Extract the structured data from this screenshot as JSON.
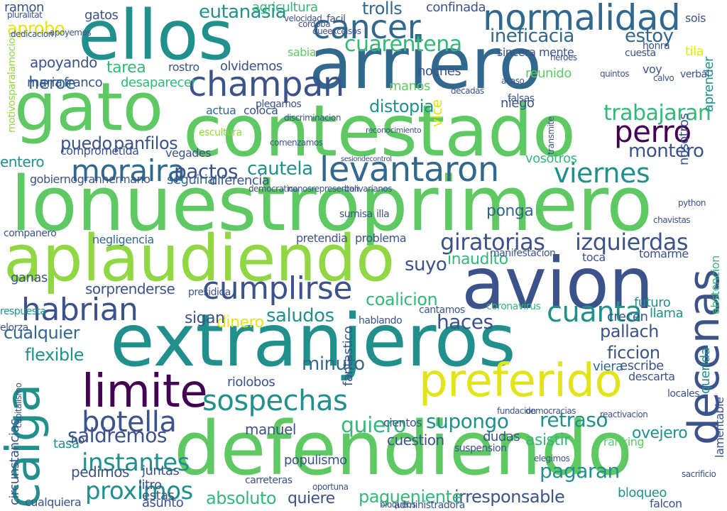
{
  "palette": {
    "dark_purple": "#440154",
    "indigo": "#3b528b",
    "slate_blue": "#31688e",
    "teal": "#21908d",
    "sea_green": "#35b779",
    "green": "#5ec962",
    "lime": "#90d743",
    "yellow": "#e3e418"
  },
  "words": [
    {
      "text": "ellos",
      "color": "#21908d"
    },
    {
      "text": "arriero",
      "color": "#31688e"
    },
    {
      "text": "gato",
      "color": "#5ec962"
    },
    {
      "text": "contestado",
      "color": "#5ec962"
    },
    {
      "text": "lonuestroprimero",
      "color": "#5ec962"
    },
    {
      "text": "aplaudiendo",
      "color": "#90d743"
    },
    {
      "text": "avion",
      "color": "#3b528b"
    },
    {
      "text": "extranjeros",
      "color": "#21908d"
    },
    {
      "text": "defendiendo",
      "color": "#5ec962"
    },
    {
      "text": "limite",
      "color": "#440154"
    },
    {
      "text": "preferido",
      "color": "#e3e418"
    },
    {
      "text": "caiga",
      "color": "#21908d"
    },
    {
      "text": "decenas",
      "color": "#3b528b"
    },
    {
      "text": "normalidad",
      "color": "#31688e"
    },
    {
      "text": "cancer",
      "color": "#31688e"
    },
    {
      "text": "champan",
      "color": "#3b528b"
    },
    {
      "text": "perro",
      "color": "#440154"
    },
    {
      "text": "levantaron",
      "color": "#31688e"
    },
    {
      "text": "moraira",
      "color": "#31688e"
    },
    {
      "text": "viernes",
      "color": "#21908d"
    },
    {
      "text": "cumplirse",
      "color": "#3b528b"
    },
    {
      "text": "habrian",
      "color": "#3b528b"
    },
    {
      "text": "cuanta",
      "color": "#21908d"
    },
    {
      "text": "sospechas",
      "color": "#21908d"
    },
    {
      "text": "botella",
      "color": "#3b528b"
    },
    {
      "text": "giratorias",
      "color": "#3b528b"
    },
    {
      "text": "izquierdas",
      "color": "#3b528b"
    },
    {
      "text": "eutanasia",
      "color": "#21908d"
    },
    {
      "text": "cuarentena",
      "color": "#35b779"
    },
    {
      "text": "ineficacia",
      "color": "#31688e"
    },
    {
      "text": "estoy",
      "color": "#31688e"
    },
    {
      "text": "proximos",
      "color": "#21908d"
    },
    {
      "text": "instantes",
      "color": "#21908d"
    },
    {
      "text": "saldremos",
      "color": "#3b528b"
    },
    {
      "text": "pactos",
      "color": "#3b528b"
    },
    {
      "text": "cautela",
      "color": "#21908d"
    },
    {
      "text": "quiero",
      "color": "#35b779"
    },
    {
      "text": "supongo",
      "color": "#21908d"
    },
    {
      "text": "retraso",
      "color": "#21908d"
    },
    {
      "text": "trabajaran",
      "color": "#35b779"
    },
    {
      "text": "montero",
      "color": "#3b528b"
    },
    {
      "text": "pallach",
      "color": "#3b528b"
    },
    {
      "text": "ficcion",
      "color": "#3b528b"
    },
    {
      "text": "haces",
      "color": "#3b528b"
    },
    {
      "text": "saludos",
      "color": "#21908d"
    },
    {
      "text": "coalicion",
      "color": "#35b779"
    },
    {
      "text": "flexible",
      "color": "#21908d"
    },
    {
      "text": "cualquier",
      "color": "#31688e"
    },
    {
      "text": "pagaran",
      "color": "#21908d"
    },
    {
      "text": "irresponsable",
      "color": "#3b528b"
    },
    {
      "text": "absoluto",
      "color": "#35b779"
    },
    {
      "text": "quiere",
      "color": "#3b528b"
    },
    {
      "text": "pagueniente",
      "color": "#35b779"
    },
    {
      "text": "minuto",
      "color": "#31688e"
    },
    {
      "text": "trolls",
      "color": "#31688e"
    },
    {
      "text": "tarea",
      "color": "#35b779"
    },
    {
      "text": "heroe",
      "color": "#31688e"
    },
    {
      "text": "apoyando",
      "color": "#3b528b"
    },
    {
      "text": "aprobo",
      "color": "#e3e418"
    },
    {
      "text": "distopia",
      "color": "#21908d"
    },
    {
      "text": "puedo",
      "color": "#3b528b"
    },
    {
      "text": "maria",
      "color": "#3b528b"
    },
    {
      "text": "franco",
      "color": "#3b528b"
    },
    {
      "text": "desaparecer",
      "color": "#35b779"
    },
    {
      "text": "olvidemos",
      "color": "#3b528b"
    },
    {
      "text": "sincera mente",
      "color": "#3b528b"
    },
    {
      "text": "panfilos",
      "color": "#3b528b"
    },
    {
      "text": "gatos",
      "color": "#3b528b"
    },
    {
      "text": "ramon",
      "color": "#3b528b"
    },
    {
      "text": "agricultura",
      "color": "#35b779"
    },
    {
      "text": "confinada",
      "color": "#3b528b"
    },
    {
      "text": "dinero",
      "color": "#e3e418"
    },
    {
      "text": "sigan",
      "color": "#3b528b"
    },
    {
      "text": "manuel",
      "color": "#3b528b"
    },
    {
      "text": "cuestion",
      "color": "#3b528b"
    },
    {
      "text": "asistir",
      "color": "#35b779"
    },
    {
      "text": "ovejero",
      "color": "#21908d"
    },
    {
      "text": "seguiria",
      "color": "#31688e"
    },
    {
      "text": "diferencia",
      "color": "#3b528b"
    },
    {
      "text": "negligencia",
      "color": "#31688e"
    },
    {
      "text": "suyo",
      "color": "#3b528b"
    },
    {
      "text": "inaudito",
      "color": "#35b779"
    },
    {
      "text": "ponga",
      "color": "#31688e"
    },
    {
      "text": "sorprenderse",
      "color": "#3b528b"
    },
    {
      "text": "llama",
      "color": "#21908d"
    },
    {
      "text": "futuro",
      "color": "#21908d"
    },
    {
      "text": "escribe",
      "color": "#3b528b"
    },
    {
      "text": "viera",
      "color": "#31688e"
    },
    {
      "text": "crecen",
      "color": "#3b528b"
    },
    {
      "text": "fantastico",
      "color": "#3b528b"
    },
    {
      "text": "bloqueo",
      "color": "#21908d"
    },
    {
      "text": "falcon",
      "color": "#3b528b"
    },
    {
      "text": "ganas",
      "color": "#3b528b"
    },
    {
      "text": "circunstancias",
      "color": "#3b528b"
    },
    {
      "text": "cualquiera",
      "color": "#3b528b"
    },
    {
      "text": "juntas",
      "color": "#3b528b"
    },
    {
      "text": "litro",
      "color": "#3b528b"
    },
    {
      "text": "pedimos",
      "color": "#3b528b"
    },
    {
      "text": "riolobos",
      "color": "#3b528b"
    },
    {
      "text": "populismo",
      "color": "#3b528b"
    },
    {
      "text": "dudas",
      "color": "#3b528b"
    },
    {
      "text": "asunto",
      "color": "#3b528b"
    },
    {
      "text": "estas",
      "color": "#3b528b"
    },
    {
      "text": "tasa",
      "color": "#21908d"
    },
    {
      "text": "ho",
      "color": "#3b528b"
    },
    {
      "text": "descarta",
      "color": "#3b528b"
    },
    {
      "text": "entero",
      "color": "#21908d"
    },
    {
      "text": "vegades",
      "color": "#3b528b"
    },
    {
      "text": "comprometida",
      "color": "#3b528b"
    },
    {
      "text": "nosotros",
      "color": "#3b528b"
    },
    {
      "text": "vosotros",
      "color": "#35b779"
    },
    {
      "text": "niego",
      "color": "#3b528b"
    },
    {
      "text": "reunido",
      "color": "#5ec962"
    },
    {
      "text": "noches",
      "color": "#3b528b"
    },
    {
      "text": "coloca",
      "color": "#3b528b"
    },
    {
      "text": "actua",
      "color": "#31688e"
    },
    {
      "text": "aprender",
      "color": "#21908d"
    },
    {
      "text": "voy",
      "color": "#3b528b"
    },
    {
      "text": "sois",
      "color": "#3b528b"
    },
    {
      "text": "tila",
      "color": "#e3e418"
    },
    {
      "text": "sabia",
      "color": "#5ec962"
    },
    {
      "text": "manos",
      "color": "#5ec962"
    },
    {
      "text": "toca",
      "color": "#3b528b"
    },
    {
      "text": "tomarme",
      "color": "#3b528b"
    },
    {
      "text": "hablando",
      "color": "#3b528b"
    },
    {
      "text": "cantamos",
      "color": "#3b528b"
    },
    {
      "text": "presidida",
      "color": "#3b528b"
    },
    {
      "text": "rostro",
      "color": "#3b528b"
    },
    {
      "text": "escultura",
      "color": "#90d743"
    },
    {
      "text": "gobiernogranhermano",
      "color": "#3b528b"
    },
    {
      "text": "companero",
      "color": "#3b528b"
    },
    {
      "text": "motivosparalamocion",
      "color": "#90d743"
    },
    {
      "text": "python",
      "color": "#3b528b"
    },
    {
      "text": "chavistas",
      "color": "#3b528b"
    },
    {
      "text": "respuesta",
      "color": "#21908d"
    },
    {
      "text": "verbal",
      "color": "#3b528b"
    },
    {
      "text": "abstencion",
      "color": "#35b779"
    },
    {
      "text": "manifestacion",
      "color": "#3b528b"
    },
    {
      "text": "carreteras",
      "color": "#3b528b"
    },
    {
      "text": "administradora",
      "color": "#3b528b"
    },
    {
      "text": "ranking",
      "color": "#5ec962"
    },
    {
      "text": "suspension",
      "color": "#3b528b"
    },
    {
      "text": "cientos",
      "color": "#3b528b"
    },
    {
      "text": "problema",
      "color": "#3b528b"
    },
    {
      "text": "pretendia",
      "color": "#3b528b"
    },
    {
      "text": "sumisa",
      "color": "#3b528b"
    },
    {
      "text": "illa",
      "color": "#3b528b"
    },
    {
      "text": "coronavirus",
      "color": "#35b779"
    },
    {
      "text": "velocidad",
      "color": "#3b528b"
    },
    {
      "text": "facil",
      "color": "#3b528b"
    },
    {
      "text": "bolivarianos",
      "color": "#3b528b"
    },
    {
      "text": "nonosrepresentan",
      "color": "#3b528b"
    },
    {
      "text": "democratica",
      "color": "#3b528b"
    },
    {
      "text": "sesiondecontrol",
      "color": "#3b528b"
    },
    {
      "text": "comenzamos",
      "color": "#3b528b"
    },
    {
      "text": "discriminacion",
      "color": "#3b528b"
    },
    {
      "text": "elorza",
      "color": "#3b528b"
    },
    {
      "text": "reconocimiento",
      "color": "#3b528b"
    },
    {
      "text": "plegamos",
      "color": "#3b528b"
    },
    {
      "text": "queexcelsos",
      "color": "#3b528b"
    },
    {
      "text": "apoyemos",
      "color": "#3b528b"
    },
    {
      "text": "dedicacion",
      "color": "#3b528b"
    },
    {
      "text": "pluralitat",
      "color": "#3b528b"
    },
    {
      "text": "cordoba",
      "color": "#3b528b"
    },
    {
      "text": "cuesta",
      "color": "#3b528b"
    },
    {
      "text": "honra",
      "color": "#3b528b"
    },
    {
      "text": "heroes",
      "color": "#3b528b"
    },
    {
      "text": "quintos",
      "color": "#3b528b"
    },
    {
      "text": "calvo",
      "color": "#3b528b"
    },
    {
      "text": "transmite",
      "color": "#3b528b"
    },
    {
      "text": "acaso",
      "color": "#3b528b"
    },
    {
      "text": "falsas",
      "color": "#3b528b"
    },
    {
      "text": "decadas",
      "color": "#3b528b"
    },
    {
      "text": "vice",
      "color": "#e3e418"
    },
    {
      "text": "bloqueos",
      "color": "#3b528b"
    },
    {
      "text": "fundacion",
      "color": "#3b528b"
    },
    {
      "text": "democracias",
      "color": "#3b528b"
    },
    {
      "text": "reactivacion",
      "color": "#3b528b"
    },
    {
      "text": "locales",
      "color": "#3b528b"
    },
    {
      "text": "elegimos",
      "color": "#3b528b"
    },
    {
      "text": "oportuna",
      "color": "#3b528b"
    },
    {
      "text": "querida",
      "color": "#21908d"
    },
    {
      "text": "lamentable",
      "color": "#3b528b"
    },
    {
      "text": "capitalismo",
      "color": "#3b528b"
    },
    {
      "text": "sacrificio",
      "color": "#3b528b"
    }
  ]
}
